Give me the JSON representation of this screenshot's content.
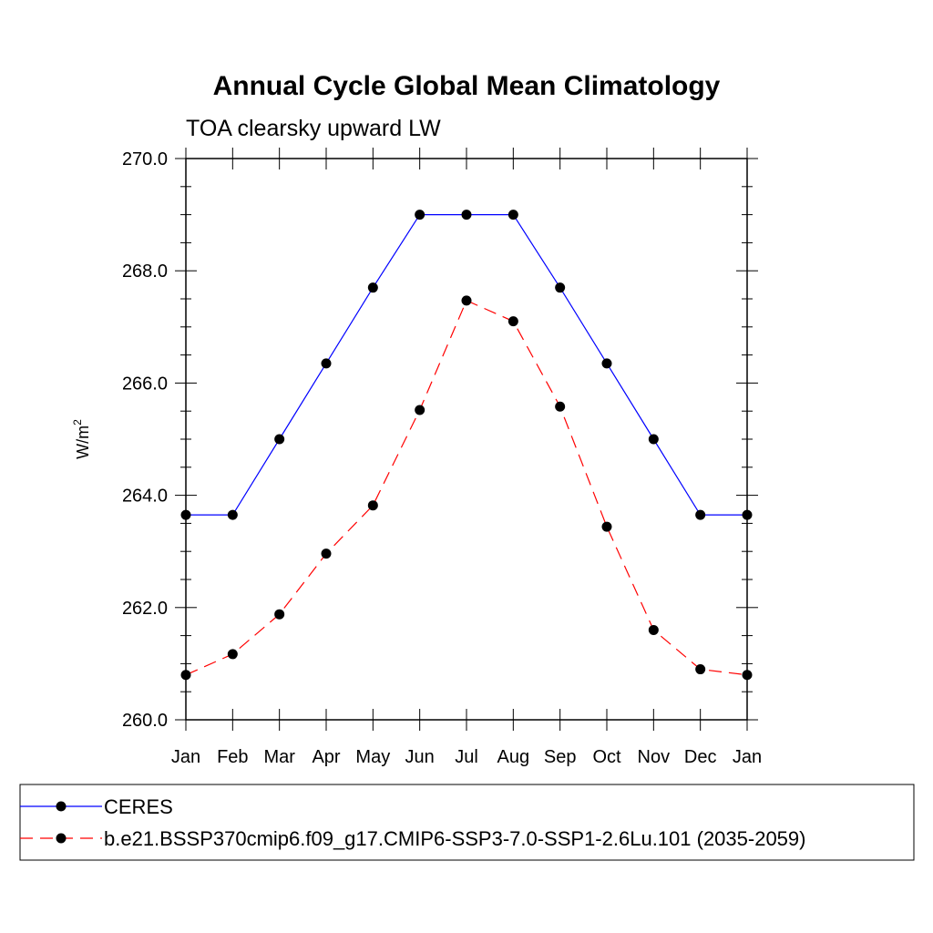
{
  "chart_data": {
    "type": "line",
    "title": "Annual Cycle Global Mean Climatology",
    "subtitle": "TOA clearsky upward LW",
    "ylabel": "W/m",
    "ylabel_sup": "2",
    "ylim": [
      260,
      270
    ],
    "yticks": [
      260,
      262,
      264,
      266,
      268,
      270
    ],
    "ytick_labels": [
      "260.0",
      "262.0",
      "264.0",
      "266.0",
      "268.0",
      "270.0"
    ],
    "categories": [
      "Jan",
      "Feb",
      "Mar",
      "Apr",
      "May",
      "Jun",
      "Jul",
      "Aug",
      "Sep",
      "Oct",
      "Nov",
      "Dec",
      "Jan"
    ],
    "series": [
      {
        "name": "CERES",
        "color": "#0000ff",
        "dash": "solid",
        "values": [
          263.65,
          263.65,
          265.0,
          266.35,
          267.7,
          269.0,
          269.0,
          269.0,
          267.7,
          266.35,
          265.0,
          263.65,
          263.65
        ]
      },
      {
        "name": "b.e21.BSSP370cmip6.f09_g17.CMIP6-SSP3-7.0-SSP1-2.6Lu.101 (2035-2059)",
        "color": "#ff0000",
        "dash": "dashed",
        "values": [
          260.8,
          261.17,
          261.88,
          262.96,
          263.82,
          265.52,
          267.47,
          267.1,
          265.58,
          263.44,
          261.6,
          260.9,
          260.8
        ]
      }
    ],
    "legend_position": "bottom"
  }
}
